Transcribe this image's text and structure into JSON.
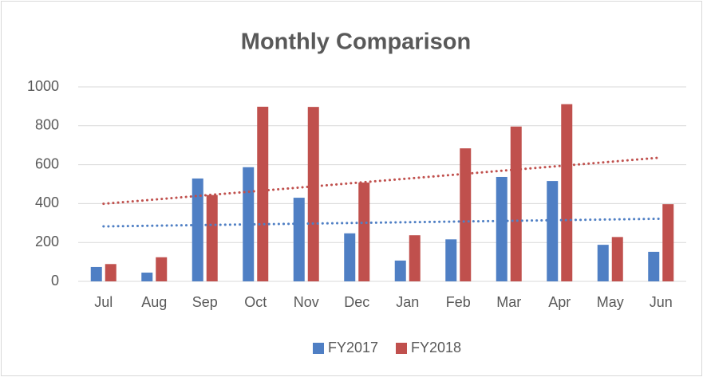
{
  "chart_data": {
    "type": "bar",
    "title": "Monthly Comparison",
    "categories": [
      "Jul",
      "Aug",
      "Sep",
      "Oct",
      "Nov",
      "Dec",
      "Jan",
      "Feb",
      "Mar",
      "Apr",
      "May",
      "Jun"
    ],
    "series": [
      {
        "name": "FY2017",
        "color": "#4f7fc4",
        "values": [
          74,
          45,
          529,
          587,
          430,
          247,
          107,
          216,
          537,
          516,
          188,
          152
        ]
      },
      {
        "name": "FY2018",
        "color": "#c0504d",
        "values": [
          89,
          124,
          444,
          898,
          897,
          508,
          237,
          684,
          796,
          911,
          228,
          397
        ]
      }
    ],
    "ylim": [
      0,
      1000
    ],
    "yticks": [
      0,
      200,
      400,
      600,
      800,
      1000
    ],
    "grid": true,
    "trendline": "linear",
    "legend": "bottom"
  }
}
